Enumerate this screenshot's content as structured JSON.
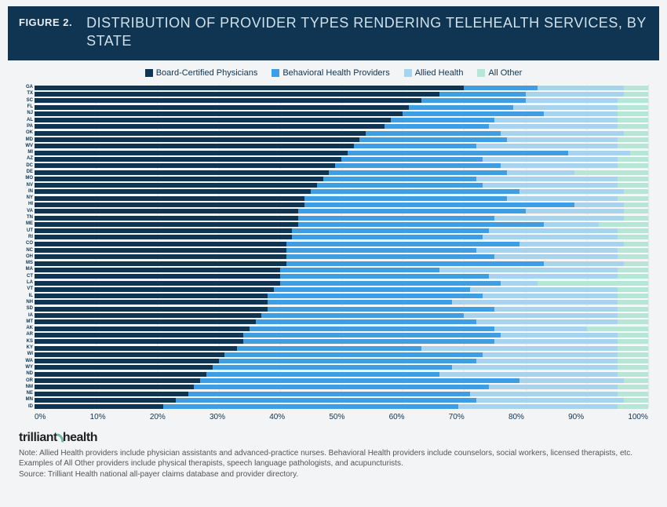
{
  "header": {
    "figure_label": "FIGURE 2.",
    "title": "DISTRIBUTION OF PROVIDER TYPES RENDERING TELEHEALTH SERVICES, BY STATE"
  },
  "chart": {
    "type": "stacked-horizontal-bar",
    "xlim": [
      0,
      100
    ],
    "xtick_step": 10,
    "xtick_suffix": "%",
    "background_color": "#f2f4f6",
    "grid_color": "rgba(15,53,82,0.08)",
    "bar_gap_color": "#ffffff",
    "label_fontsize": 6,
    "label_color": "#0f3552",
    "axis_fontsize": 10,
    "axis_color": "#0f3552",
    "series": [
      {
        "key": "bcp",
        "label": "Board-Certified Physicians",
        "color": "#0f3552"
      },
      {
        "key": "bhp",
        "label": "Behavioral Health Providers",
        "color": "#3e9de3"
      },
      {
        "key": "allied",
        "label": "Allied Health",
        "color": "#a7d3ef"
      },
      {
        "key": "other",
        "label": "All Other",
        "color": "#b7e6d6"
      }
    ],
    "rows": [
      {
        "state": "GA",
        "bcp": 70,
        "bhp": 12,
        "allied": 14,
        "other": 4
      },
      {
        "state": "TX",
        "bcp": 66,
        "bhp": 14,
        "allied": 16,
        "other": 4
      },
      {
        "state": "SC",
        "bcp": 63,
        "bhp": 17,
        "allied": 15,
        "other": 5
      },
      {
        "state": "FL",
        "bcp": 61,
        "bhp": 17,
        "allied": 17,
        "other": 5
      },
      {
        "state": "NJ",
        "bcp": 60,
        "bhp": 23,
        "allied": 12,
        "other": 5
      },
      {
        "state": "AL",
        "bcp": 58,
        "bhp": 17,
        "allied": 20,
        "other": 5
      },
      {
        "state": "PA",
        "bcp": 57,
        "bhp": 17,
        "allied": 21,
        "other": 5
      },
      {
        "state": "OK",
        "bcp": 54,
        "bhp": 22,
        "allied": 20,
        "other": 4
      },
      {
        "state": "MD",
        "bcp": 53,
        "bhp": 24,
        "allied": 18,
        "other": 5
      },
      {
        "state": "WV",
        "bcp": 52,
        "bhp": 20,
        "allied": 23,
        "other": 5
      },
      {
        "state": "MI",
        "bcp": 51,
        "bhp": 36,
        "allied": 10,
        "other": 3
      },
      {
        "state": "AZ",
        "bcp": 50,
        "bhp": 23,
        "allied": 22,
        "other": 5
      },
      {
        "state": "DC",
        "bcp": 49,
        "bhp": 27,
        "allied": 19,
        "other": 5
      },
      {
        "state": "DE",
        "bcp": 48,
        "bhp": 29,
        "allied": 11,
        "other": 12
      },
      {
        "state": "MO",
        "bcp": 47,
        "bhp": 25,
        "allied": 23,
        "other": 5
      },
      {
        "state": "NV",
        "bcp": 46,
        "bhp": 27,
        "allied": 22,
        "other": 5
      },
      {
        "state": "IN",
        "bcp": 45,
        "bhp": 34,
        "allied": 17,
        "other": 4
      },
      {
        "state": "NY",
        "bcp": 44,
        "bhp": 33,
        "allied": 18,
        "other": 5
      },
      {
        "state": "HI",
        "bcp": 44,
        "bhp": 44,
        "allied": 8,
        "other": 4
      },
      {
        "state": "VA",
        "bcp": 43,
        "bhp": 37,
        "allied": 16,
        "other": 4
      },
      {
        "state": "TN",
        "bcp": 43,
        "bhp": 32,
        "allied": 21,
        "other": 4
      },
      {
        "state": "ME",
        "bcp": 43,
        "bhp": 40,
        "allied": 9,
        "other": 8
      },
      {
        "state": "UT",
        "bcp": 42,
        "bhp": 32,
        "allied": 21,
        "other": 5
      },
      {
        "state": "RI",
        "bcp": 42,
        "bhp": 31,
        "allied": 22,
        "other": 5
      },
      {
        "state": "CO",
        "bcp": 41,
        "bhp": 38,
        "allied": 17,
        "other": 4
      },
      {
        "state": "NC",
        "bcp": 41,
        "bhp": 31,
        "allied": 23,
        "other": 5
      },
      {
        "state": "OH",
        "bcp": 41,
        "bhp": 34,
        "allied": 20,
        "other": 5
      },
      {
        "state": "MS",
        "bcp": 41,
        "bhp": 42,
        "allied": 13,
        "other": 4
      },
      {
        "state": "MA",
        "bcp": 40,
        "bhp": 26,
        "allied": 29,
        "other": 5
      },
      {
        "state": "CT",
        "bcp": 40,
        "bhp": 34,
        "allied": 21,
        "other": 5
      },
      {
        "state": "LA",
        "bcp": 40,
        "bhp": 36,
        "allied": 6,
        "other": 18
      },
      {
        "state": "VT",
        "bcp": 39,
        "bhp": 32,
        "allied": 24,
        "other": 5
      },
      {
        "state": "IL",
        "bcp": 38,
        "bhp": 35,
        "allied": 22,
        "other": 5
      },
      {
        "state": "NH",
        "bcp": 38,
        "bhp": 30,
        "allied": 27,
        "other": 5
      },
      {
        "state": "SD",
        "bcp": 38,
        "bhp": 37,
        "allied": 20,
        "other": 5
      },
      {
        "state": "IA",
        "bcp": 37,
        "bhp": 33,
        "allied": 25,
        "other": 5
      },
      {
        "state": "MT",
        "bcp": 36,
        "bhp": 36,
        "allied": 23,
        "other": 5
      },
      {
        "state": "AK",
        "bcp": 35,
        "bhp": 40,
        "allied": 15,
        "other": 10
      },
      {
        "state": "AR",
        "bcp": 34,
        "bhp": 42,
        "allied": 19,
        "other": 5
      },
      {
        "state": "KS",
        "bcp": 34,
        "bhp": 41,
        "allied": 20,
        "other": 5
      },
      {
        "state": "KY",
        "bcp": 33,
        "bhp": 30,
        "allied": 32,
        "other": 5
      },
      {
        "state": "WI",
        "bcp": 31,
        "bhp": 42,
        "allied": 22,
        "other": 5
      },
      {
        "state": "WA",
        "bcp": 30,
        "bhp": 42,
        "allied": 23,
        "other": 5
      },
      {
        "state": "WY",
        "bcp": 29,
        "bhp": 39,
        "allied": 27,
        "other": 5
      },
      {
        "state": "ND",
        "bcp": 28,
        "bhp": 38,
        "allied": 29,
        "other": 5
      },
      {
        "state": "OR",
        "bcp": 27,
        "bhp": 52,
        "allied": 17,
        "other": 4
      },
      {
        "state": "NM",
        "bcp": 26,
        "bhp": 48,
        "allied": 21,
        "other": 5
      },
      {
        "state": "NE",
        "bcp": 25,
        "bhp": 46,
        "allied": 24,
        "other": 5
      },
      {
        "state": "MN",
        "bcp": 23,
        "bhp": 49,
        "allied": 24,
        "other": 4
      },
      {
        "state": "ID",
        "bcp": 21,
        "bhp": 48,
        "allied": 26,
        "other": 5
      }
    ]
  },
  "footer": {
    "brand_left": "trilliant",
    "brand_right": "health",
    "note": "Note: Allied Health providers include physician assistants and advanced-practice nurses. Behavioral Health providers include counselors, social workers, licensed therapists, etc. Examples of All Other providers include physical therapists, speech language pathologists, and acupuncturists.",
    "source": "Source: Trilliant Health national all-payer claims database and provider directory."
  }
}
